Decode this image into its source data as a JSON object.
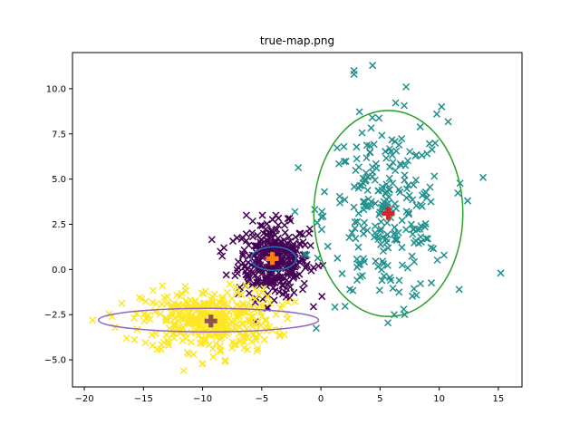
{
  "chart_data": {
    "type": "scatter",
    "title": "true-map.png",
    "xlabel": "",
    "ylabel": "",
    "xlim": [
      -21,
      17
    ],
    "ylim": [
      -6.5,
      12
    ],
    "xticks": [
      -20,
      -15,
      -10,
      -5,
      0,
      5,
      10,
      15
    ],
    "yticks": [
      -5.0,
      -2.5,
      0.0,
      2.5,
      5.0,
      7.5,
      10.0
    ],
    "ytick_labels": [
      "−5.0",
      "−2.5",
      "0.0",
      "2.5",
      "5.0",
      "7.5",
      "10.0"
    ],
    "xtick_labels": [
      "−20",
      "−15",
      "−10",
      "−5",
      "0",
      "5",
      "10",
      "15"
    ],
    "grid": false,
    "legend": "none",
    "clusters": [
      {
        "color": "#440154",
        "marker": "x",
        "center": [
          -4.0,
          0.5
        ],
        "spread": [
          1.5,
          1.0
        ],
        "count": 350,
        "extreme_points": [
          [
            -6.3,
            3.0
          ],
          [
            -8.2,
            1.2
          ],
          [
            -8.0,
            -0.3
          ],
          [
            -1.0,
            2.0
          ],
          [
            -0.2,
            0.2
          ],
          [
            -3.8,
            3.0
          ],
          [
            -8.5,
            1.0
          ]
        ],
        "ellipse": {
          "center": [
            -4.0,
            0.6
          ],
          "rx": 1.9,
          "ry": 0.65,
          "color": "#1f77b4"
        },
        "centroid": {
          "xy": [
            -4.1,
            0.6
          ],
          "color": "#ff7f0e"
        }
      },
      {
        "color": "#21908d",
        "marker": "x",
        "center": [
          5.5,
          3.1
        ],
        "spread": [
          2.6,
          2.5
        ],
        "count": 250,
        "extreme_points": [
          [
            2.8,
            11.0
          ],
          [
            2.8,
            10.8
          ],
          [
            7.2,
            10.1
          ],
          [
            10.2,
            9.0
          ],
          [
            9.8,
            8.6
          ],
          [
            15.2,
            -0.2
          ],
          [
            12.4,
            3.8
          ],
          [
            0.3,
            4.3
          ],
          [
            -2.2,
            3.2
          ],
          [
            -1.2,
            0.8
          ],
          [
            6.2,
            -2.5
          ],
          [
            7.0,
            -2.2
          ]
        ],
        "ellipse": {
          "center": [
            5.7,
            3.1
          ],
          "rx": 6.3,
          "ry": 5.7,
          "color": "#2ca02c"
        },
        "centroid": {
          "xy": [
            5.7,
            3.1
          ],
          "color": "#d62728"
        }
      },
      {
        "color": "#fde725",
        "marker": "x",
        "center": [
          -9.5,
          -2.8
        ],
        "spread": [
          2.8,
          0.85
        ],
        "count": 400,
        "extreme_points": [
          [
            -19.3,
            -2.8
          ],
          [
            -17.4,
            -3.2
          ],
          [
            -11.6,
            -5.6
          ],
          [
            -10.0,
            -5.2
          ],
          [
            -8.1,
            -5.1
          ],
          [
            -5.4,
            -4.5
          ],
          [
            -4.5,
            -1.5
          ],
          [
            -13.4,
            -0.9
          ],
          [
            -6.3,
            -0.9
          ],
          [
            -2.8,
            -1.8
          ]
        ],
        "ellipse": {
          "center": [
            -9.5,
            -2.8
          ],
          "rx": 9.3,
          "ry": 0.65,
          "color": "#9467bd"
        },
        "centroid": {
          "xy": [
            -9.3,
            -2.85
          ],
          "color": "#8c564b"
        }
      }
    ]
  }
}
